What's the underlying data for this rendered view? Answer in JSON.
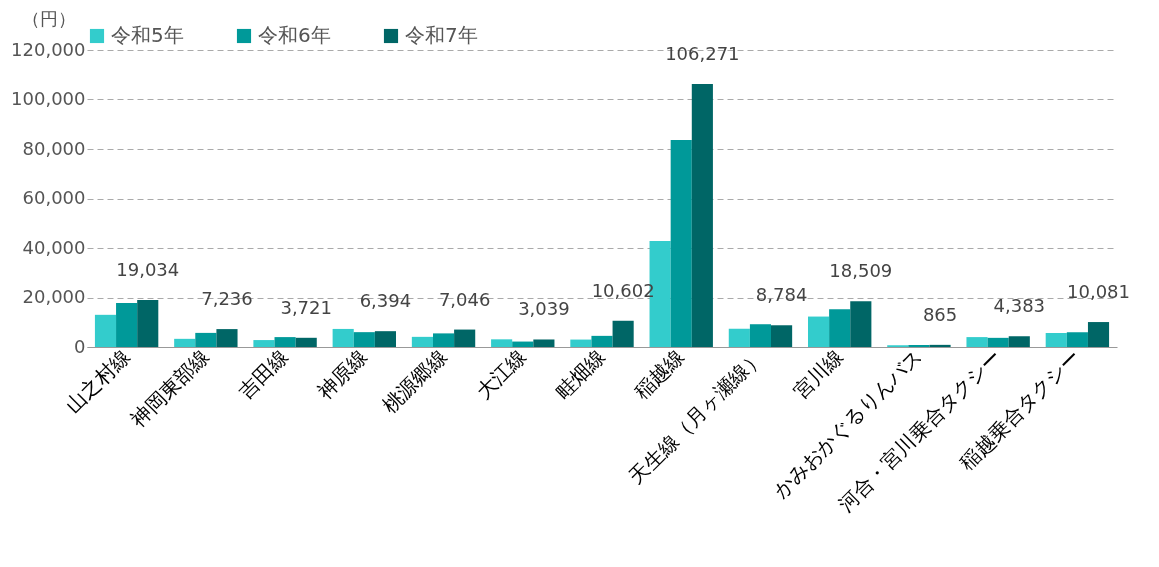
{
  "chart_data": {
    "type": "bar",
    "ylabel": "（円）",
    "categories": [
      "山之村線",
      "神岡東部線",
      "吉田線",
      "神原線",
      "桃源郷線",
      "大江線",
      "畦畑線",
      "稲越線",
      "天生線（月ヶ瀬線）",
      "宮川線",
      "かみおかぐるりんバス",
      "河合・宮川乗合タクシー",
      "稲越乗合タクシー"
    ],
    "series": [
      {
        "name": "令和5年",
        "color": "#33cccc",
        "values": [
          13000,
          3300,
          2800,
          7300,
          4100,
          3100,
          3000,
          42800,
          7400,
          12300,
          700,
          4000,
          5700
        ]
      },
      {
        "name": "令和6年",
        "color": "#009999",
        "values": [
          17800,
          5700,
          4000,
          6000,
          5500,
          2200,
          4500,
          83600,
          9200,
          15300,
          800,
          3700,
          6000
        ]
      },
      {
        "name": "令和7年",
        "color": "#006666",
        "values": [
          19034,
          7236,
          3721,
          6394,
          7046,
          3039,
          10602,
          106271,
          8784,
          18509,
          865,
          4383,
          10081
        ],
        "value_labels": [
          "19,034",
          "7,236",
          "3,721",
          "6,394",
          "7,046",
          "3,039",
          "10,602",
          "106,271",
          "8,784",
          "18,509",
          "865",
          "4,383",
          "10,081"
        ]
      }
    ],
    "ylim": [
      0,
      120000
    ],
    "yticks": [
      0,
      {
        "value": 20000,
        "label": "20,000"
      },
      {
        "value": 40000,
        "label": "40,000"
      },
      {
        "value": 60000,
        "label": "60,000"
      },
      {
        "value": 80000,
        "label": "80,000"
      },
      {
        "value": 100000,
        "label": "100,000"
      },
      {
        "value": 120000,
        "label": "120,000"
      }
    ],
    "grid": "y",
    "legend": "top"
  }
}
